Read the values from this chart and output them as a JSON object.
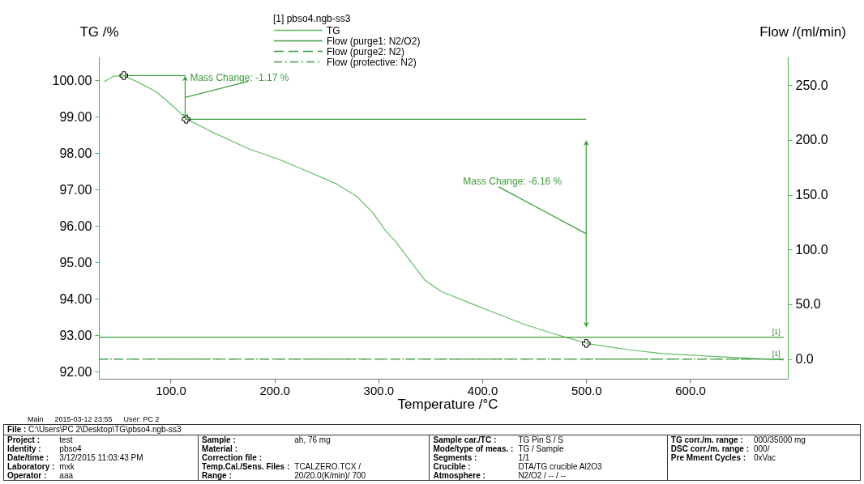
{
  "chart_data": {
    "type": "line",
    "legend_title": "[1] pbso4.ngb-ss3",
    "legend": "top",
    "xlabel": "Temperature /°C",
    "ylabel": "TG /%",
    "y2label": "Flow /(ml/min)",
    "xlim": [
      31,
      694
    ],
    "xticks": [
      {
        "value": 100,
        "label": "100.0"
      },
      {
        "value": 200,
        "label": "200.0"
      },
      {
        "value": 300,
        "label": "300.0"
      },
      {
        "value": 400,
        "label": "400.0"
      },
      {
        "value": 500,
        "label": "500.0"
      },
      {
        "value": 600,
        "label": "600.0"
      }
    ],
    "ylim": [
      91.8,
      100.65
    ],
    "yticks": [
      {
        "value": 92,
        "label": "92.00"
      },
      {
        "value": 93,
        "label": "93.00"
      },
      {
        "value": 94,
        "label": "94.00"
      },
      {
        "value": 95,
        "label": "95.00"
      },
      {
        "value": 96,
        "label": "96.00"
      },
      {
        "value": 97,
        "label": "97.00"
      },
      {
        "value": 98,
        "label": "98.00"
      },
      {
        "value": 99,
        "label": "99.00"
      },
      {
        "value": 100,
        "label": "100.00"
      }
    ],
    "y2lim": [
      -18,
      276
    ],
    "y2ticks": [
      {
        "value": 0,
        "label": "0.0"
      },
      {
        "value": 50,
        "label": "50.0"
      },
      {
        "value": 100,
        "label": "100.0"
      },
      {
        "value": 150,
        "label": "150.0"
      },
      {
        "value": 200,
        "label": "200.0"
      },
      {
        "value": 250,
        "label": "250.0"
      }
    ],
    "series": [
      {
        "name": "TG",
        "color": "#66bb66",
        "x": [
          36,
          45,
          53,
          56,
          70,
          86,
          100,
          116,
          140,
          176,
          205,
          235,
          260,
          280,
          295,
          307,
          316,
          329,
          345,
          361,
          390,
          414,
          440,
          467,
          503,
          540,
          573,
          626,
          660,
          690
        ],
        "values": [
          99.96,
          100.11,
          100.13,
          100.11,
          99.93,
          99.69,
          99.35,
          98.93,
          98.58,
          98.11,
          97.82,
          97.46,
          97.15,
          96.79,
          96.35,
          95.86,
          95.59,
          95.1,
          94.5,
          94.19,
          93.86,
          93.59,
          93.3,
          93.05,
          92.76,
          92.6,
          92.49,
          92.41,
          92.36,
          92.32
        ]
      },
      {
        "name": "Flow (purge1: N2/O2)",
        "axis": "y2",
        "color": "#3d9b3d",
        "x": [
          31,
          690
        ],
        "values": [
          20,
          20
        ]
      },
      {
        "name": "Flow (purge2: N2)",
        "axis": "y2",
        "color": "#3d9b3d",
        "line_style": "dashed",
        "x": [
          31,
          690
        ],
        "values": [
          0,
          0
        ]
      },
      {
        "name": "Flow (protective: N2)",
        "axis": "y2",
        "color": "#3d9b3d",
        "line_style": "dashdot",
        "x": [
          31,
          690
        ],
        "values": [
          0,
          0
        ]
      },
      {
        "color": "#3d9b3d",
        "x": [
          55,
          114
        ],
        "values": [
          100.13,
          100.13
        ]
      },
      {
        "color": "#3d9b3d",
        "x": [
          114,
          500
        ],
        "values": [
          98.93,
          98.93
        ]
      },
      {
        "type": "scatter",
        "marker": "cross",
        "color": "#000000",
        "x": [
          55,
          115,
          500
        ],
        "values": [
          100.13,
          98.93,
          92.77
        ]
      }
    ],
    "annotations": [
      "Mass Change: -1.17 %",
      "Mass Change: -6.16 %",
      "[1]",
      "[1]",
      "Main",
      "2015-03-12 23:55",
      "User: PC 2",
      "File : C:\\Users\\PC 2\\Desktop\\TG\\pbso4.ngb-ss3",
      "Project : test",
      "Identity : pbso4",
      "Date/time : 3/12/2015 11:03:43 PM",
      "Laboratory : mxk",
      "Operator : aaa",
      "Sample : ah, 76 mg",
      "Material :",
      "Correction file :",
      "Temp.Cal./Sens. Files : TCALZERO.TCX /",
      "Range : 20/20.0(K/min)/ 700",
      "Sample car./TC : TG Pin S / S",
      "Mode/type of meas. : TG / Sample",
      "Segments : 1/1",
      "Crucible : DTA/TG crucible Al2O3",
      "Atmosphere : N2/O2 / -- / --",
      "TG corr./m. range : 000/35000 mg",
      "DSC corr./m. range : 000/",
      "Pre Mment Cycles : 0xVac"
    ]
  }
}
